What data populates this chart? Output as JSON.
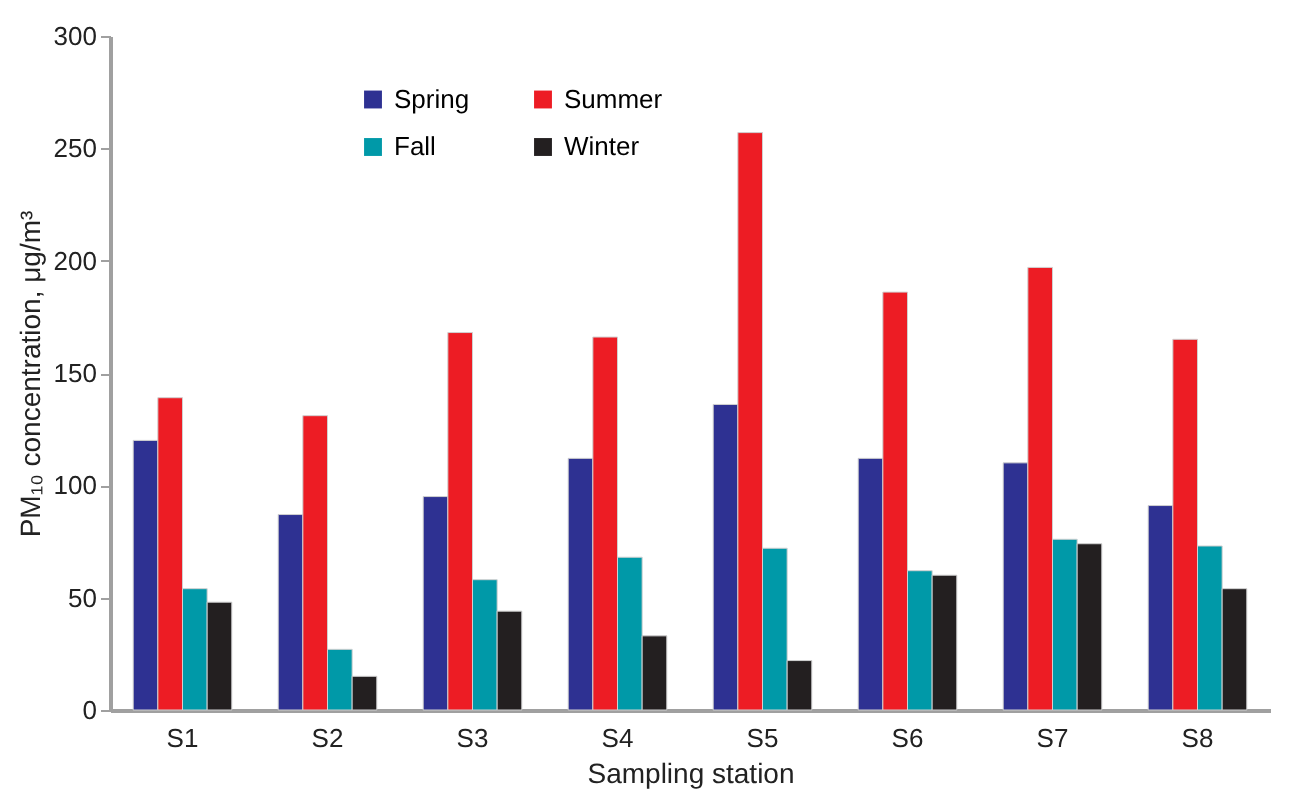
{
  "chart_data": {
    "type": "bar",
    "xlabel": "Sampling station",
    "ylabel": "PM₁₀ concentration, μg/m³",
    "categories": [
      "S1",
      "S2",
      "S3",
      "S4",
      "S5",
      "S6",
      "S7",
      "S8"
    ],
    "series": [
      {
        "name": "Spring",
        "color": "#2e3192",
        "values": [
          120,
          87,
          95,
          112,
          136,
          112,
          110,
          91
        ]
      },
      {
        "name": "Summer",
        "color": "#ed1c24",
        "values": [
          139,
          131,
          168,
          166,
          257,
          186,
          197,
          165
        ]
      },
      {
        "name": "Fall",
        "color": "#0099a8",
        "values": [
          54,
          27,
          58,
          68,
          72,
          62,
          76,
          73
        ]
      },
      {
        "name": "Winter",
        "color": "#231f20",
        "values": [
          48,
          15,
          44,
          33,
          22,
          60,
          74,
          54
        ]
      }
    ],
    "ylim": [
      0,
      300
    ],
    "yticks": [
      0,
      50,
      100,
      150,
      200,
      250,
      300
    ],
    "grid": false,
    "legend": "top"
  }
}
